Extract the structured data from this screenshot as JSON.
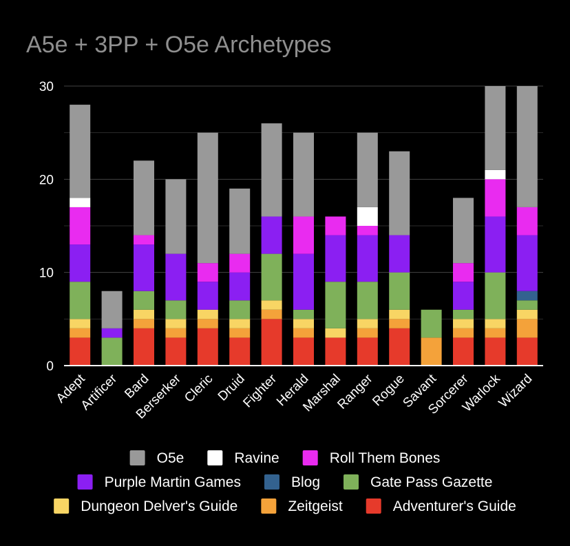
{
  "chart_data": {
    "type": "bar",
    "stacked": true,
    "title": "A5e + 3PP + O5e Archetypes",
    "xlabel": "",
    "ylabel": "",
    "ylim": [
      0,
      30
    ],
    "yticks": [
      0,
      10,
      20,
      30
    ],
    "grid": true,
    "legend_position": "bottom",
    "categories": [
      "Adept",
      "Artificer",
      "Bard",
      "Berserker",
      "Cleric",
      "Druid",
      "Fighter",
      "Herald",
      "Marshal",
      "Ranger",
      "Rogue",
      "Savant",
      "Sorcerer",
      "Warlock",
      "Wizard"
    ],
    "series": [
      {
        "name": "Adventurer's Guide",
        "color": "#e63a2b",
        "values": [
          3,
          0,
          4,
          3,
          4,
          3,
          5,
          3,
          3,
          3,
          4,
          0,
          3,
          3,
          3
        ]
      },
      {
        "name": "Zeitgeist",
        "color": "#f4a23a",
        "values": [
          1,
          0,
          1,
          1,
          1,
          1,
          1,
          1,
          0,
          1,
          1,
          3,
          1,
          1,
          2
        ]
      },
      {
        "name": "Dungeon Delver's Guide",
        "color": "#f8d564",
        "values": [
          1,
          0,
          1,
          1,
          1,
          1,
          1,
          1,
          1,
          1,
          1,
          0,
          1,
          1,
          1
        ]
      },
      {
        "name": "Gate Pass Gazette",
        "color": "#7fb15a",
        "values": [
          4,
          3,
          2,
          2,
          0,
          2,
          5,
          1,
          5,
          4,
          4,
          3,
          1,
          5,
          1
        ]
      },
      {
        "name": "Blog",
        "color": "#33628f",
        "values": [
          0,
          0,
          0,
          0,
          0,
          0,
          0,
          0,
          0,
          0,
          0,
          0,
          0,
          0,
          1
        ]
      },
      {
        "name": "Purple Martin Games",
        "color": "#8b1ff2",
        "values": [
          4,
          1,
          5,
          5,
          3,
          3,
          4,
          6,
          5,
          5,
          4,
          0,
          3,
          6,
          6
        ]
      },
      {
        "name": "Roll Them Bones",
        "color": "#e92bf0",
        "values": [
          4,
          0,
          1,
          0,
          2,
          2,
          0,
          4,
          2,
          1,
          0,
          0,
          2,
          4,
          3
        ]
      },
      {
        "name": "Ravine",
        "color": "#ffffff",
        "values": [
          1,
          0,
          0,
          0,
          0,
          0,
          0,
          0,
          0,
          2,
          0,
          0,
          0,
          1,
          0
        ]
      },
      {
        "name": "O5e",
        "color": "#999999",
        "values": [
          10,
          4,
          8,
          8,
          14,
          7,
          10,
          9,
          0,
          8,
          9,
          0,
          7,
          9,
          13
        ]
      }
    ],
    "legend_order": [
      "O5e",
      "Ravine",
      "Roll Them Bones",
      "Purple Martin Games",
      "Blog",
      "Gate Pass Gazette",
      "Dungeon Delver's Guide",
      "Zeitgeist",
      "Adventurer's Guide"
    ],
    "colors": {
      "background": "#000000",
      "title": "#8f8f8f",
      "text": "#ffffff",
      "gridline": "#444444",
      "axis": "#ffffff"
    }
  }
}
